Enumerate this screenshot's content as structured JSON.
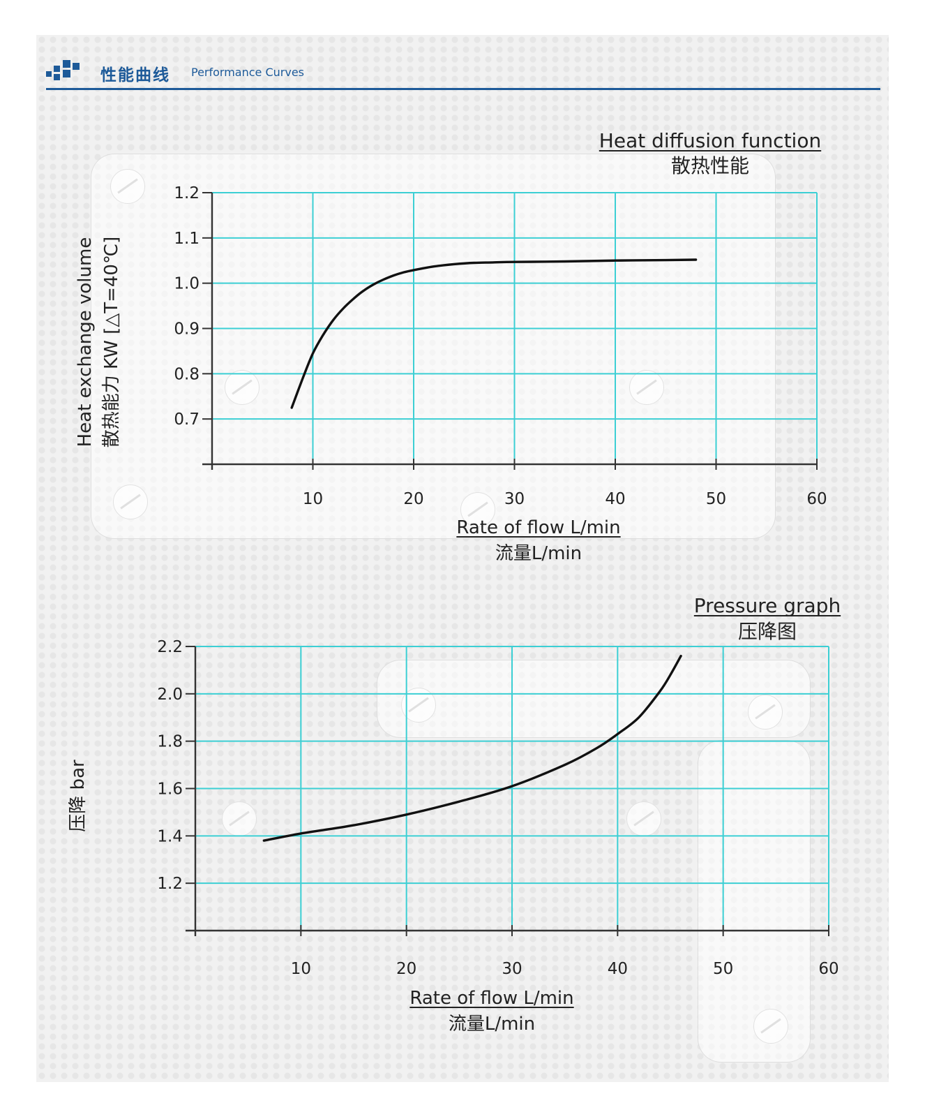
{
  "header": {
    "title_cn": "性能曲线",
    "title_en": "Performance Curves"
  },
  "colors": {
    "brand": "#1d5a99",
    "grid": "#3ccfd4",
    "curve": "#111111"
  },
  "chart_data": [
    {
      "type": "line",
      "title": "Heat diffusion function",
      "subtitle": "散热性能",
      "xlabel": "Rate of flow L/min",
      "xlabel_cn": "流量L/min",
      "ylabel": "Heat exchange volume",
      "ylabel_cn": "散热能力 KW [△T=40℃]",
      "xlim": [
        0,
        60
      ],
      "ylim": [
        0.6,
        1.2
      ],
      "x_ticks": [
        10,
        20,
        30,
        40,
        50,
        60
      ],
      "y_ticks": [
        0.7,
        0.8,
        0.9,
        1.0,
        1.1,
        1.2
      ],
      "x_tick_labels": [
        "10",
        "20",
        "30",
        "40",
        "50",
        "60"
      ],
      "y_tick_labels": [
        "0.7",
        "0.8",
        "0.9",
        "1.0",
        "1.1",
        "1.2"
      ],
      "grid": true,
      "series": [
        {
          "x": [
            7.9,
            9,
            10,
            11,
            12,
            13,
            14,
            15,
            16,
            17,
            18,
            19,
            20,
            22,
            24,
            26,
            28,
            30,
            35,
            40,
            45,
            48
          ],
          "y": [
            0.725,
            0.79,
            0.845,
            0.885,
            0.918,
            0.944,
            0.965,
            0.983,
            0.997,
            1.008,
            1.017,
            1.024,
            1.029,
            1.037,
            1.042,
            1.045,
            1.046,
            1.047,
            1.048,
            1.05,
            1.051,
            1.052
          ]
        }
      ]
    },
    {
      "type": "line",
      "title": "Pressure graph",
      "subtitle": "压降图",
      "xlabel": "Rate of flow L/min",
      "xlabel_cn": "流量L/min",
      "ylabel": "压降 bar",
      "xlim": [
        0,
        60
      ],
      "ylim": [
        1.0,
        2.2
      ],
      "x_ticks": [
        10,
        20,
        30,
        40,
        50,
        60
      ],
      "y_ticks": [
        1.2,
        1.4,
        1.6,
        1.8,
        2.0,
        2.2
      ],
      "x_tick_labels": [
        "10",
        "20",
        "30",
        "40",
        "50",
        "60"
      ],
      "y_tick_labels": [
        "1.2",
        "1.4",
        "1.6",
        "1.8",
        "2.0",
        "2.2"
      ],
      "grid": true,
      "series": [
        {
          "x": [
            6.5,
            10,
            15,
            20,
            25,
            30,
            35,
            38,
            40,
            42,
            44,
            45,
            46
          ],
          "y": [
            1.38,
            1.41,
            1.445,
            1.49,
            1.545,
            1.61,
            1.7,
            1.77,
            1.83,
            1.9,
            2.01,
            2.08,
            2.16
          ]
        }
      ]
    }
  ]
}
